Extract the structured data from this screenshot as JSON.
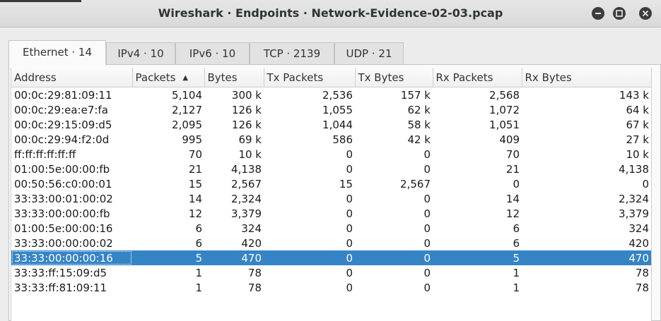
{
  "window": {
    "title": "Wireshark · Endpoints · Network-Evidence-02-03.pcap",
    "buttons": [
      "minimize-icon",
      "maximize-icon",
      "close-icon"
    ]
  },
  "tabs": [
    {
      "label": "Ethernet · 14",
      "active": true
    },
    {
      "label": "IPv4 · 10",
      "active": false
    },
    {
      "label": "IPv6 · 10",
      "active": false
    },
    {
      "label": "TCP · 2139",
      "active": false
    },
    {
      "label": "UDP · 21",
      "active": false
    }
  ],
  "table": {
    "columns": [
      "Address",
      "Packets",
      "Bytes",
      "Tx Packets",
      "Tx Bytes",
      "Rx Packets",
      "Rx Bytes"
    ],
    "sort_column": "Packets",
    "sort_direction": "descending",
    "selected_row": 11,
    "rows": [
      [
        "00:0c:29:81:09:11",
        "5,104",
        "300 k",
        "2,536",
        "157 k",
        "2,568",
        "143 k"
      ],
      [
        "00:0c:29:ea:e7:fa",
        "2,127",
        "126 k",
        "1,055",
        "62 k",
        "1,072",
        "64 k"
      ],
      [
        "00:0c:29:15:09:d5",
        "2,095",
        "126 k",
        "1,044",
        "58 k",
        "1,051",
        "67 k"
      ],
      [
        "00:0c:29:94:f2:0d",
        "995",
        "69 k",
        "586",
        "42 k",
        "409",
        "27 k"
      ],
      [
        "ff:ff:ff:ff:ff:ff",
        "70",
        "10 k",
        "0",
        "0",
        "70",
        "10 k"
      ],
      [
        "01:00:5e:00:00:fb",
        "21",
        "4,138",
        "0",
        "0",
        "21",
        "4,138"
      ],
      [
        "00:50:56:c0:00:01",
        "15",
        "2,567",
        "15",
        "2,567",
        "0",
        "0"
      ],
      [
        "33:33:00:01:00:02",
        "14",
        "2,324",
        "0",
        "0",
        "14",
        "2,324"
      ],
      [
        "33:33:00:00:00:fb",
        "12",
        "3,379",
        "0",
        "0",
        "12",
        "3,379"
      ],
      [
        "01:00:5e:00:00:16",
        "6",
        "324",
        "0",
        "0",
        "6",
        "324"
      ],
      [
        "33:33:00:00:00:02",
        "6",
        "420",
        "0",
        "0",
        "6",
        "420"
      ],
      [
        "33:33:00:00:00:16",
        "5",
        "470",
        "0",
        "0",
        "5",
        "470"
      ],
      [
        "33:33:ff:15:09:d5",
        "1",
        "78",
        "0",
        "0",
        "1",
        "78"
      ],
      [
        "33:33:ff:81:09:11",
        "1",
        "78",
        "0",
        "0",
        "1",
        "78"
      ]
    ]
  },
  "colors": {
    "selection": "#3584c6",
    "titlebar": "#dcdcdc"
  }
}
